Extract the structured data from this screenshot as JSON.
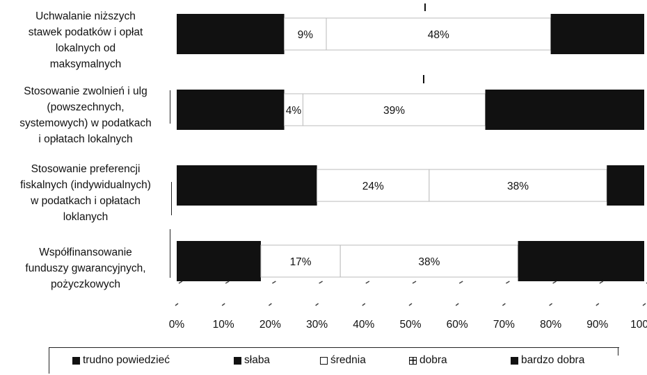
{
  "chart_data": {
    "type": "bar",
    "orientation": "horizontal",
    "stacked": true,
    "categories": [
      "Uchwalanie niższych stawek podatków i opłat lokalnych od maksymalnych",
      "Stosowanie zwolnień i ulg (powszechnych, systemowych) w podatkach i opłatach lokalnych",
      "Stosowanie preferencji fiskalnych (indywidualnych) w podatkach i opłatach loklanych",
      "Współfinansowanie funduszy gwarancyjnych, pożyczkowych"
    ],
    "category_lines": [
      [
        "Uchwalanie niższych",
        "stawek podatków i opłat",
        "lokalnych od",
        "maksymalnych"
      ],
      [
        "Stosowanie zwolnień i ulg",
        "(powszechnych,",
        "systemowych) w podatkach",
        "i opłatach lokalnych"
      ],
      [
        "Stosowanie preferencji",
        "fiskalnych (indywidualnych)",
        "w podatkach i opłatach",
        "loklanych"
      ],
      [
        "Współfinansowanie",
        "funduszy gwarancyjnych,",
        "pożyczkowych"
      ]
    ],
    "series": [
      {
        "name": "trudno powiedzieć",
        "values": [
          null,
          null,
          null,
          null
        ],
        "color": "#111111"
      },
      {
        "name": "słaba",
        "values": [
          null,
          null,
          null,
          null
        ],
        "color": "#111111"
      },
      {
        "name": "średnia",
        "values": [
          9,
          4,
          24,
          17
        ],
        "color": "#ffffff"
      },
      {
        "name": "dobra",
        "values": [
          48,
          39,
          38,
          38
        ],
        "color": "#ffffff"
      },
      {
        "name": "bardzo dobra",
        "values": [
          null,
          null,
          null,
          null
        ],
        "color": "#111111"
      }
    ],
    "visible_segments": [
      {
        "start": 0,
        "end": 33,
        "color": "#111111"
      },
      {
        "start": 33,
        "end": 43,
        "color": "#111111"
      },
      {
        "start": 0,
        "end": 43,
        "color": "#111111"
      }
    ],
    "segment_starts": [
      [
        0,
        23,
        32,
        80
      ],
      [
        0,
        23,
        27,
        66
      ],
      [
        0,
        30,
        54,
        92
      ],
      [
        0,
        18,
        35,
        73
      ]
    ],
    "data_labels": [
      [
        "9%",
        "48%"
      ],
      [
        "4%",
        "39%"
      ],
      [
        "24%",
        "38%"
      ],
      [
        "17%",
        "38%"
      ]
    ],
    "x_ticks": [
      "0%",
      "10%",
      "20%",
      "30%",
      "40%",
      "50%",
      "60%",
      "70%",
      "80%",
      "90%",
      "100%"
    ],
    "xlim": [
      0,
      100
    ],
    "legend_position": "bottom",
    "grid": false
  }
}
